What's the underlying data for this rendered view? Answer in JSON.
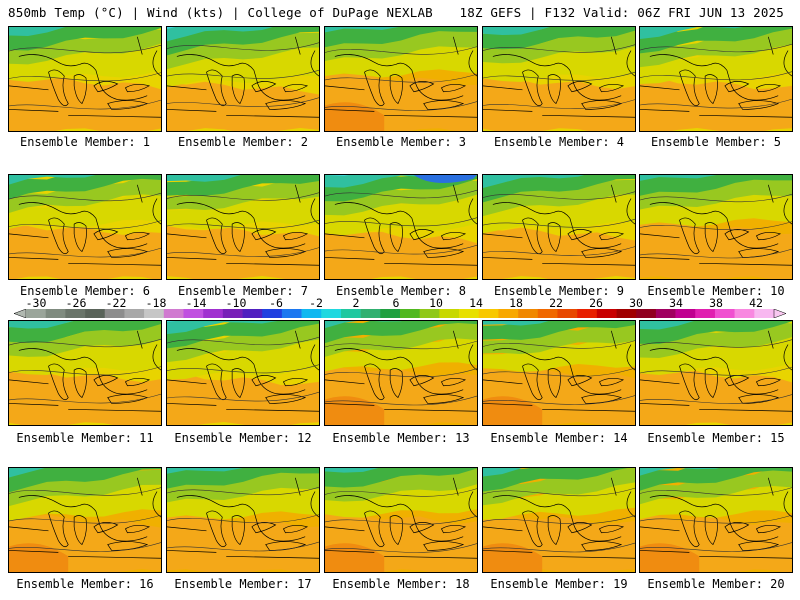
{
  "header": {
    "left_title": "850mb Temp (°C) | Wind (kts) | College of DuPage NEXLAB",
    "right_title": "18Z GEFS | F132 Valid: 06Z FRI JUN 13 2025"
  },
  "members": [
    {
      "label": "Ensemble Member: 1",
      "warm": 0.45
    },
    {
      "label": "Ensemble Member: 2",
      "warm": 0.2
    },
    {
      "label": "Ensemble Member: 3",
      "warm": 0.6
    },
    {
      "label": "Ensemble Member: 4",
      "warm": 0.4
    },
    {
      "label": "Ensemble Member: 5",
      "warm": 0.35
    },
    {
      "label": "Ensemble Member: 6",
      "warm": 0.45
    },
    {
      "label": "Ensemble Member: 7",
      "warm": 0.4
    },
    {
      "label": "Ensemble Member: 8",
      "warm": 0.15
    },
    {
      "label": "Ensemble Member: 9",
      "warm": 0.3
    },
    {
      "label": "Ensemble Member: 10",
      "warm": 0.55
    },
    {
      "label": "Ensemble Member: 11",
      "warm": 0.45
    },
    {
      "label": "Ensemble Member: 12",
      "warm": 0.25
    },
    {
      "label": "Ensemble Member: 13",
      "warm": 0.65
    },
    {
      "label": "Ensemble Member: 14",
      "warm": 0.6
    },
    {
      "label": "Ensemble Member: 15",
      "warm": 0.5
    },
    {
      "label": "Ensemble Member: 16",
      "warm": 0.6
    },
    {
      "label": "Ensemble Member: 17",
      "warm": 0.55
    },
    {
      "label": "Ensemble Member: 18",
      "warm": 0.7
    },
    {
      "label": "Ensemble Member: 19",
      "warm": 0.65
    },
    {
      "label": "Ensemble Member: 20",
      "warm": 0.6
    }
  ],
  "colorbar": {
    "ticks": [
      "-30",
      "-26",
      "-22",
      "-18",
      "-14",
      "-10",
      "-6",
      "-2",
      "2",
      "6",
      "10",
      "14",
      "18",
      "22",
      "26",
      "30",
      "34",
      "38",
      "42"
    ],
    "colors": [
      "#9aa59a",
      "#7f8b7f",
      "#6a756a",
      "#5a645a",
      "#8d8d8d",
      "#a8a8a8",
      "#c6c6c6",
      "#d07ad0",
      "#c050e0",
      "#a030d0",
      "#7820b8",
      "#5020c0",
      "#2040e0",
      "#1c78f0",
      "#10b8f0",
      "#20d8e0",
      "#20c8a0",
      "#30b070",
      "#20a040",
      "#50b820",
      "#90c818",
      "#c8d800",
      "#e8e000",
      "#f8c800",
      "#f8a800",
      "#f08800",
      "#f06800",
      "#e84800",
      "#e82000",
      "#c80000",
      "#a00000",
      "#900020",
      "#a00060",
      "#c00090",
      "#e020b0",
      "#f050d0",
      "#f888e0",
      "#f8b8f0"
    ]
  },
  "icons": {
    "left_arrow": "triangle-left-icon",
    "right_arrow": "triangle-right-icon"
  }
}
